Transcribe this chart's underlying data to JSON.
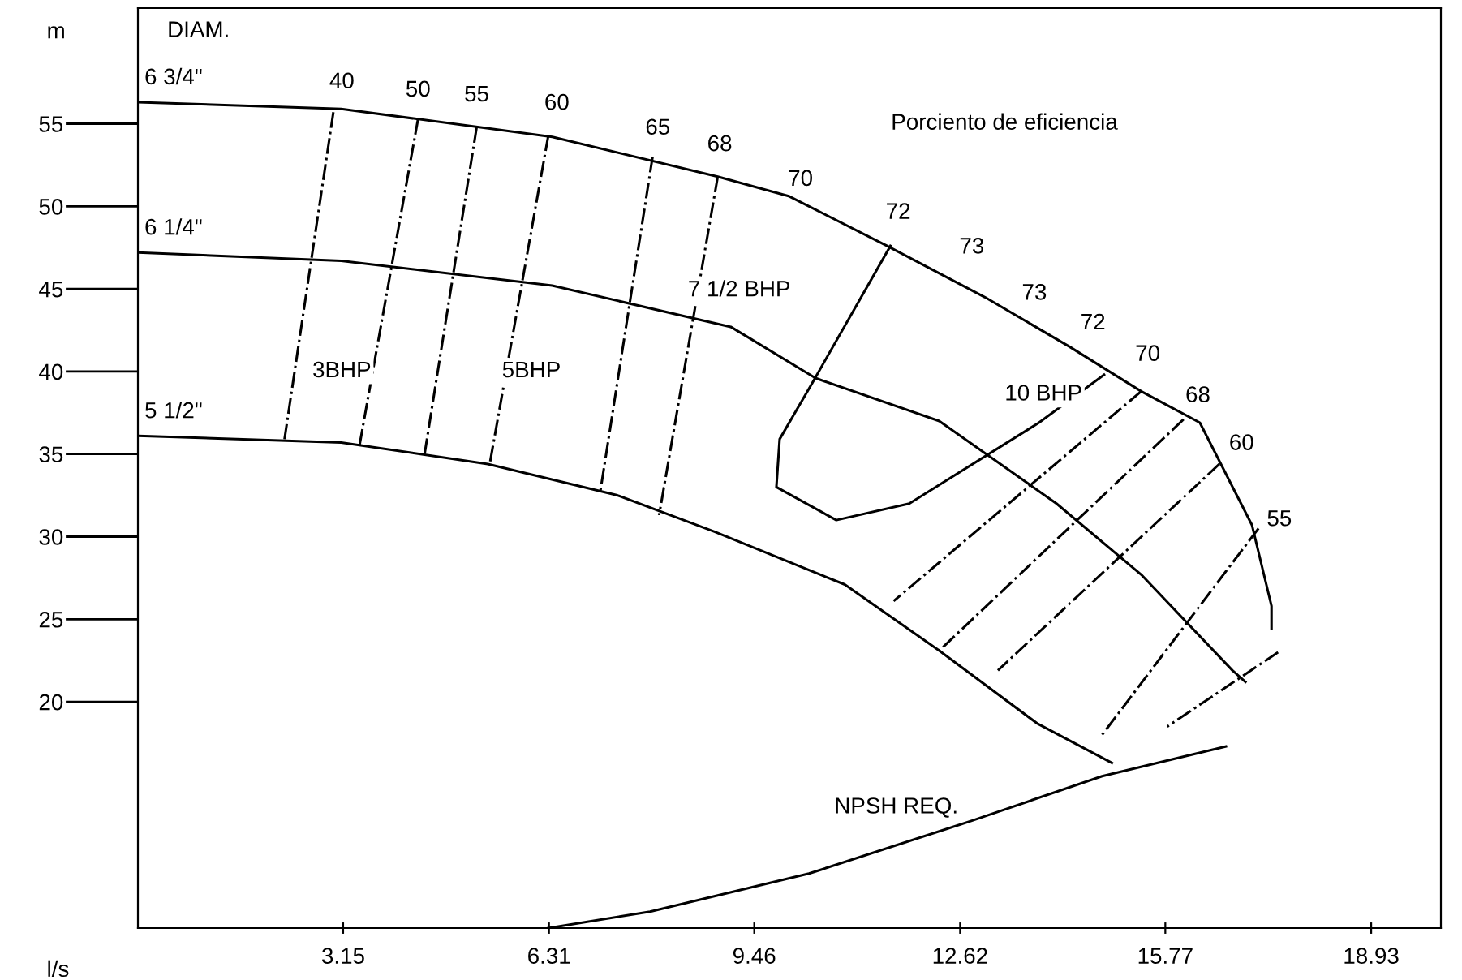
{
  "chart_data": {
    "type": "line",
    "xlabel": "l/s",
    "ylabel": "m",
    "xlim": [
      0,
      20
    ],
    "ylim": [
      6.3,
      62
    ],
    "xticks": [
      3.15,
      6.31,
      9.46,
      12.62,
      15.77,
      18.93
    ],
    "yticks": [
      20,
      25,
      30,
      35,
      40,
      45,
      50,
      55
    ],
    "grid": false,
    "legend": false,
    "series": [
      {
        "name": "6 3/4\"",
        "color": "#000000",
        "line_style": "solid",
        "x": [
          0,
          3.12,
          6.36,
          8.9,
          10.0,
          11.5,
          13.0,
          14.3,
          15.4,
          16.3,
          17.1,
          17.4,
          17.4
        ],
        "values": [
          56.3,
          55.9,
          54.2,
          51.8,
          50.6,
          47.6,
          44.5,
          41.5,
          38.8,
          36.9,
          30.7,
          25.8,
          24.4
        ]
      },
      {
        "name": "6 1/4\"",
        "color": "#000000",
        "line_style": "solid",
        "x": [
          0,
          3.12,
          6.36,
          9.1,
          10.4,
          12.3,
          14.1,
          15.4,
          16.8,
          17.0
        ],
        "values": [
          47.2,
          46.7,
          45.2,
          42.7,
          39.6,
          37.0,
          32.0,
          27.7,
          21.9,
          21.2
        ]
      },
      {
        "name": "5 1/2\"",
        "color": "#000000",
        "line_style": "solid",
        "x": [
          0,
          3.12,
          5.37,
          7.36,
          8.85,
          10.85,
          12.3,
          13.8,
          14.95
        ],
        "values": [
          36.1,
          35.7,
          34.4,
          32.5,
          30.3,
          27.1,
          23.1,
          18.7,
          16.3
        ]
      },
      {
        "color": "#000000",
        "line_style": "solid",
        "x": [
          6.3,
          7.86,
          10.3,
          12.8,
          14.8,
          16.7
        ],
        "values": [
          6.3,
          7.3,
          9.6,
          12.8,
          15.5,
          17.3
        ]
      },
      {
        "color": "#000000",
        "line_style": "solid",
        "x": [
          11.55,
          10.35,
          9.85,
          9.8,
          10.72,
          11.84,
          13.83,
          14.83
        ],
        "values": [
          47.6,
          39.3,
          35.9,
          33.0,
          31.0,
          32.0,
          36.9,
          39.8
        ]
      },
      {
        "color": "#000000",
        "line_style": "dashdot",
        "x": [
          3.0,
          2.25
        ],
        "values": [
          55.7,
          35.9
        ]
      },
      {
        "color": "#000000",
        "line_style": "dashdot",
        "x": [
          4.3,
          3.4
        ],
        "values": [
          55.3,
          35.5
        ]
      },
      {
        "color": "#000000",
        "line_style": "dashdot",
        "x": [
          5.2,
          4.4
        ],
        "values": [
          54.8,
          35.0
        ]
      },
      {
        "color": "#000000",
        "line_style": "dashdot",
        "x": [
          6.3,
          5.4
        ],
        "values": [
          54.3,
          34.4
        ]
      },
      {
        "color": "#000000",
        "line_style": "dashdot",
        "x": [
          7.9,
          7.1
        ],
        "values": [
          53.0,
          32.8
        ]
      },
      {
        "color": "#000000",
        "line_style": "dashdot",
        "x": [
          8.9,
          8.0
        ],
        "values": [
          51.8,
          31.3
        ]
      },
      {
        "color": "#000000",
        "line_style": "dashdot",
        "x": [
          15.4,
          11.6
        ],
        "values": [
          38.8,
          26.1
        ]
      },
      {
        "color": "#000000",
        "line_style": "dashdot",
        "x": [
          16.05,
          12.3
        ],
        "values": [
          37.1,
          23.1
        ]
      },
      {
        "color": "#000000",
        "line_style": "dashdot",
        "x": [
          16.6,
          13.2
        ],
        "values": [
          34.4,
          21.9
        ]
      },
      {
        "color": "#000000",
        "line_style": "dashdot",
        "x": [
          17.2,
          14.8
        ],
        "values": [
          30.5,
          18.0
        ]
      },
      {
        "color": "#000000",
        "line_style": "dashdot",
        "x": [
          17.5,
          15.8
        ],
        "values": [
          23.0,
          18.5
        ]
      }
    ],
    "annotations": [
      "DIAM.",
      "Porciento de eficiencia",
      "40",
      "50",
      "55",
      "60",
      "65",
      "68",
      "70",
      "72",
      "73",
      "73",
      "72",
      "70",
      "68",
      "60",
      "55",
      "3BHP",
      "5BHP",
      "7 1/2 BHP",
      "10 BHP",
      "NPSH REQ."
    ]
  }
}
